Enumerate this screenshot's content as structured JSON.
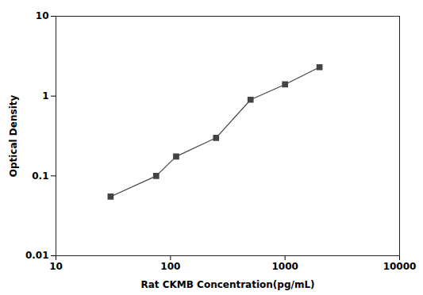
{
  "chart_data": {
    "type": "line",
    "x": [
      30,
      75,
      112,
      250,
      500,
      1000,
      2000
    ],
    "values": [
      0.055,
      0.1,
      0.175,
      0.3,
      0.9,
      1.4,
      2.3
    ],
    "xlabel": "Rat CKMB Concentration(pg/mL)",
    "ylabel": "Optical Density",
    "xlim": [
      10,
      10000
    ],
    "ylim": [
      0.01,
      10
    ],
    "xticks": [
      10,
      100,
      1000,
      10000
    ],
    "yticks": [
      0.01,
      0.1,
      1,
      10
    ],
    "log": true,
    "grid": false,
    "color": "#444444",
    "marker": "square",
    "line_style": "solid"
  }
}
